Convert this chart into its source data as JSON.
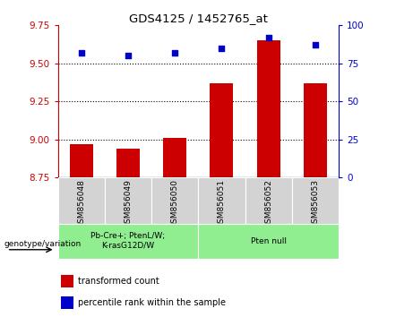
{
  "title": "GDS4125 / 1452765_at",
  "samples": [
    "GSM856048",
    "GSM856049",
    "GSM856050",
    "GSM856051",
    "GSM856052",
    "GSM856053"
  ],
  "bar_values": [
    8.97,
    8.94,
    9.01,
    9.37,
    9.65,
    9.37
  ],
  "percentile_values": [
    82,
    80,
    82,
    85,
    92,
    87
  ],
  "bar_color": "#cc0000",
  "dot_color": "#0000cc",
  "ylim_left": [
    8.75,
    9.75
  ],
  "ylim_right": [
    0,
    100
  ],
  "yticks_left": [
    8.75,
    9.0,
    9.25,
    9.5,
    9.75
  ],
  "yticks_right": [
    0,
    25,
    50,
    75,
    100
  ],
  "grid_values": [
    9.0,
    9.25,
    9.5
  ],
  "group1_label": "Pb-Cre+; PtenL/W;\nK-rasG12D/W",
  "group2_label": "Pten null",
  "group_label_left": "genotype/variation",
  "legend_bar_label": "transformed count",
  "legend_dot_label": "percentile rank within the sample",
  "bar_width": 0.5,
  "group_color": "#90ee90",
  "sample_box_color": "#d3d3d3",
  "tick_color_left": "#cc0000",
  "tick_color_right": "#0000cc",
  "base_value": 8.75
}
